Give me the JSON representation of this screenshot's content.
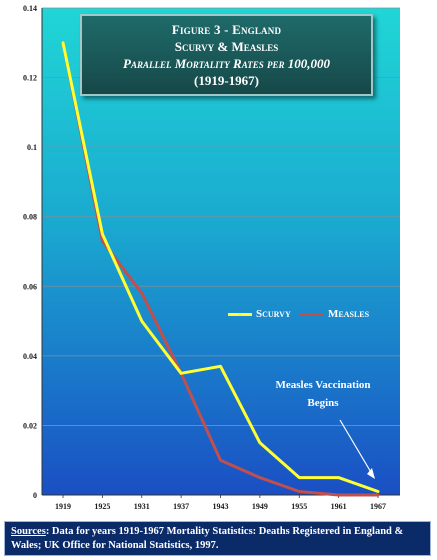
{
  "title": {
    "line1": "Figure 3 - England",
    "line2": "Scurvy & Measles",
    "line3": "Parallel Mortality Rates per 100,000",
    "line4": "(1919-1967)"
  },
  "annotation": {
    "line1": "Measles Vaccination",
    "line2": "Begins"
  },
  "source": {
    "label": "Sources",
    "text": ": Data for years 1919-1967 Mortality Statistics: Deaths Registered in England & Wales;  UK Office for National Statistics, 1997."
  },
  "colors": {
    "scurvy": "#ffff33",
    "measles": "#c0504d",
    "plot_top": "#1ac8d0",
    "plot_bottom": "#1a55c8"
  },
  "chart_data": {
    "type": "line",
    "x": [
      "1919",
      "1925",
      "1931",
      "1937",
      "1943",
      "1949",
      "1955",
      "1961",
      "1967"
    ],
    "series": [
      {
        "name": "Scurvy",
        "values": [
          0.13,
          0.075,
          0.05,
          0.035,
          0.037,
          0.015,
          0.005,
          0.005,
          0.001
        ]
      },
      {
        "name": "Measles",
        "values": [
          0.13,
          0.073,
          0.058,
          0.035,
          0.01,
          0.005,
          0.001,
          0.0,
          0.0
        ]
      }
    ],
    "yticks": [
      "0",
      "0.02",
      "0.04",
      "0.06",
      "0.08",
      "0.1",
      "0.12",
      "0.14"
    ],
    "ylim": [
      0,
      0.14
    ],
    "legend_position": "center-right",
    "grid": true
  }
}
